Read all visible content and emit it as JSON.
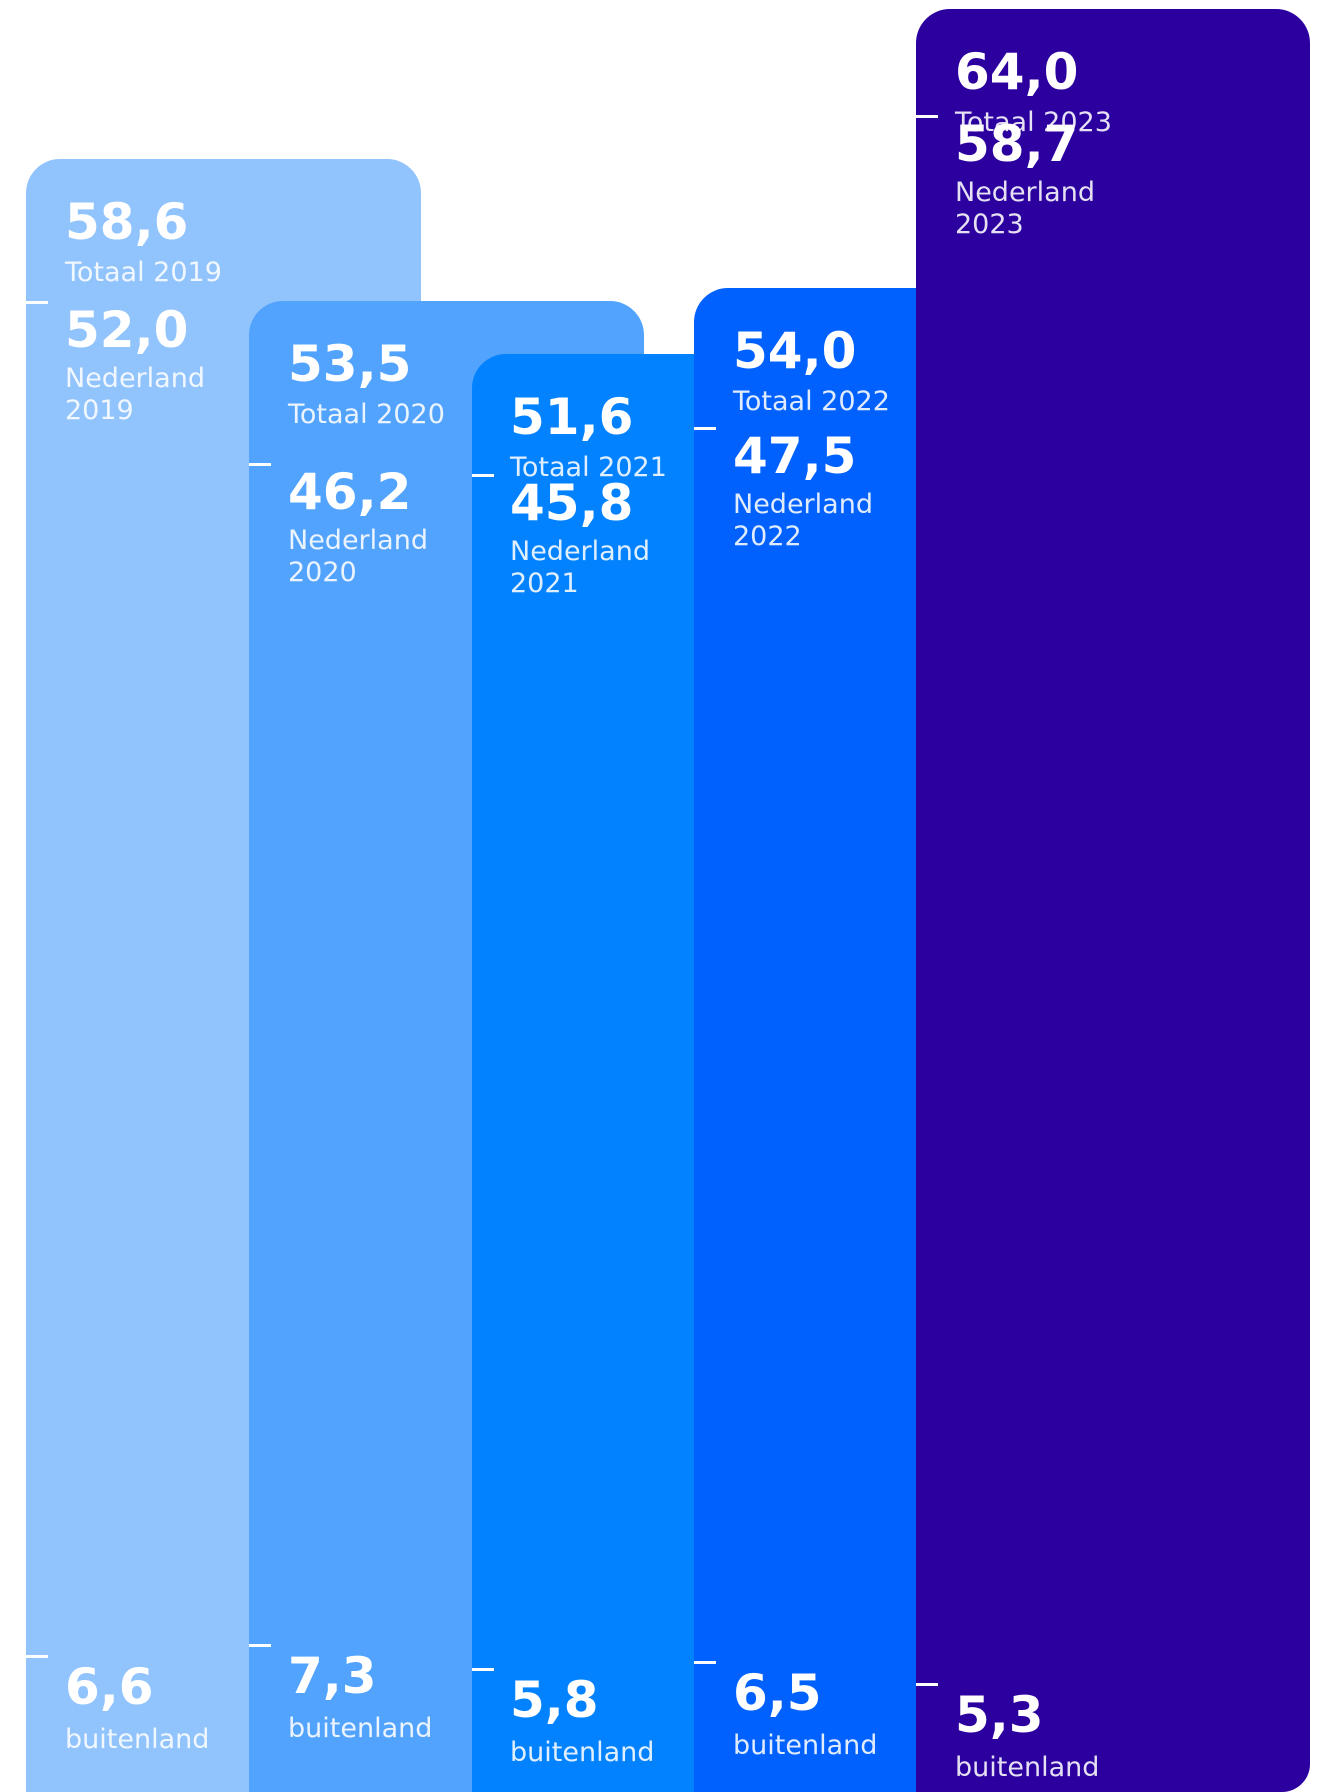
{
  "chart_data": {
    "type": "bar",
    "categories": [
      "2019",
      "2020",
      "2021",
      "2022",
      "2023"
    ],
    "series": [
      {
        "key": "totaal",
        "values": [
          58.6,
          53.5,
          51.6,
          54.0,
          64.0
        ],
        "value_labels": [
          "58,6",
          "53,5",
          "51,6",
          "54,0",
          "64,0"
        ],
        "text_labels": [
          "Totaal 2019",
          "Totaal 2020",
          "Totaal 2021",
          "Totaal 2022",
          "Totaal 2023"
        ]
      },
      {
        "key": "nederland",
        "values": [
          52.0,
          46.2,
          45.8,
          47.5,
          58.7
        ],
        "value_labels": [
          "52,0",
          "46,2",
          "45,8",
          "47,5",
          "58,7"
        ],
        "text_labels": [
          "Nederland\n2019",
          "Nederland\n2020",
          "Nederland\n2021",
          "Nederland\n2022",
          "Nederland\n2023"
        ]
      },
      {
        "key": "buitenland",
        "values": [
          6.6,
          7.3,
          5.8,
          6.5,
          5.3
        ],
        "value_labels": [
          "6,6",
          "7,3",
          "5,8",
          "6,5",
          "5,3"
        ],
        "text_labels": [
          "buitenland",
          "buitenland",
          "buitenland",
          "buitenland",
          "buitenland"
        ]
      }
    ],
    "colors": [
      "#91c3fd",
      "#52a3fd",
      "#0282ff",
      "#0061fe",
      "#2c009f"
    ]
  }
}
